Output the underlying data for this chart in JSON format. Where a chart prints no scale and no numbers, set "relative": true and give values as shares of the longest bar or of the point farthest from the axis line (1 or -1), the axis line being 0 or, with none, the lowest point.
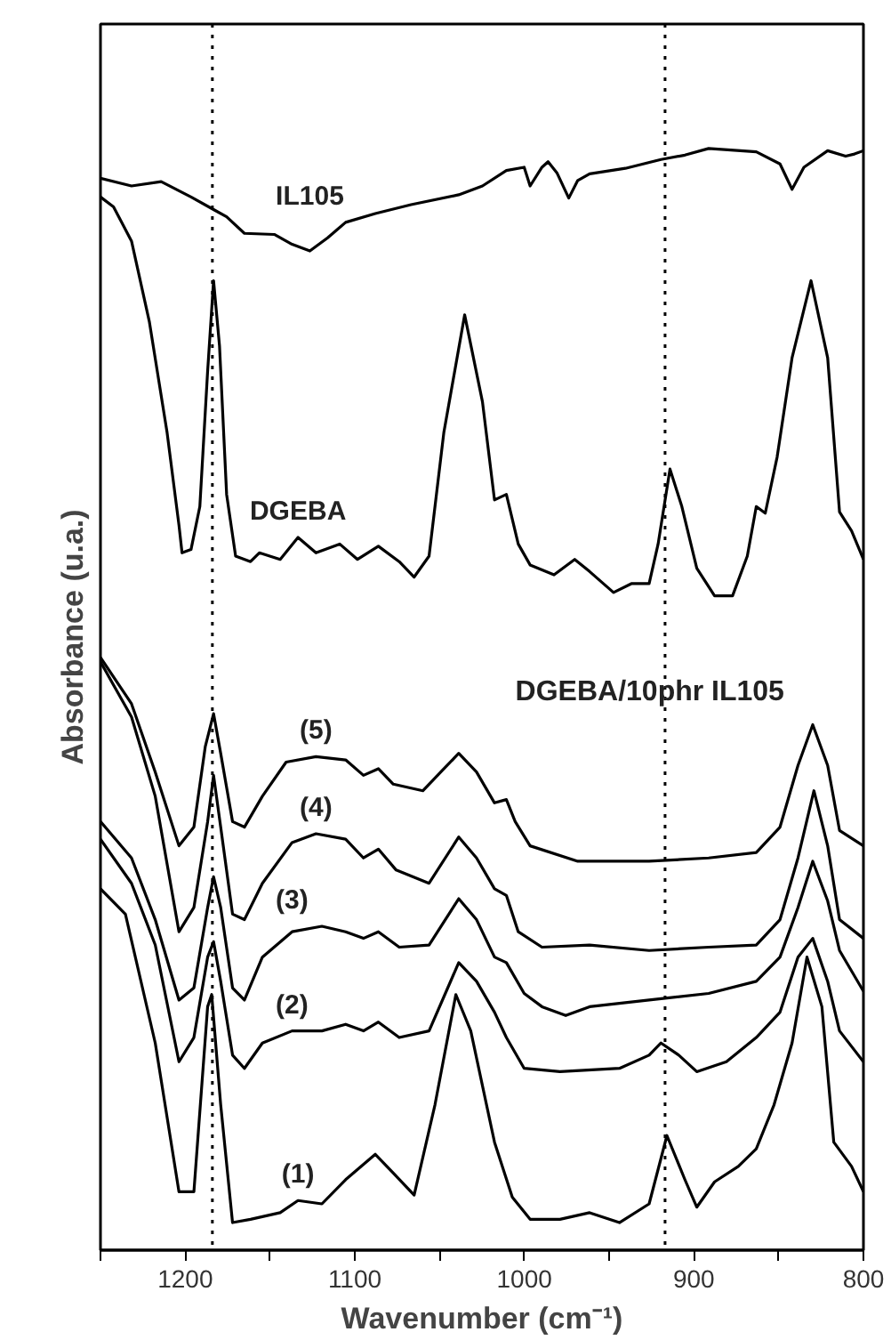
{
  "chart_data": {
    "type": "line",
    "relative": true,
    "xlabel": "Wavenumber (cm⁻¹)",
    "ylabel": "Absorbance (u.a.)",
    "xlim": [
      1250,
      800
    ],
    "xticks": [
      {
        "value": 1250,
        "label": null
      },
      1200,
      {
        "value": 1150,
        "label": null
      },
      1100,
      {
        "value": 1050,
        "label": null
      },
      1000,
      {
        "value": 950,
        "label": null
      },
      900,
      {
        "value": 850,
        "label": null
      },
      800
    ],
    "grid": false,
    "legend": false,
    "marker": "none",
    "line_style": "solid",
    "ref_lines": [
      {
        "axis": "x",
        "value": 1184,
        "color": "#000000",
        "line_style": "dotted"
      },
      {
        "axis": "x",
        "value": 917,
        "color": "#000000",
        "line_style": "dotted"
      }
    ],
    "annotations": [
      "DGEBA/10phr IL105"
    ],
    "series": [
      {
        "name": "IL105",
        "color": "#000000",
        "x": [
          1250,
          1231.7,
          1214.2,
          1196.6,
          1182.6,
          1175.6,
          1165.1,
          1147.5,
          1137.0,
          1126.5,
          1116.0,
          1105.4,
          1087.9,
          1066.8,
          1038.7,
          1024.7,
          1010.6,
          1000.1,
          996.6,
          989.6,
          986.0,
          980.8,
          973.8,
          968.5,
          961.5,
          940.4,
          919.4,
          905.3,
          891.3,
          863.2,
          849.2,
          842.1,
          835.1,
          821.1,
          810.5,
          805.3,
          800.0
        ],
        "values": [
          0.973,
          0.966,
          0.97,
          0.956,
          0.944,
          0.938,
          0.923,
          0.922,
          0.913,
          0.907,
          0.919,
          0.933,
          0.941,
          0.949,
          0.958,
          0.966,
          0.98,
          0.983,
          0.966,
          0.983,
          0.988,
          0.978,
          0.955,
          0.971,
          0.977,
          0.982,
          0.99,
          0.994,
          1.0,
          0.997,
          0.986,
          0.963,
          0.983,
          0.998,
          0.993,
          0.995,
          0.998
        ]
      },
      {
        "name": "DGEBA",
        "color": "#000000",
        "x": [
          1250,
          1242.3,
          1231.7,
          1221.2,
          1210.7,
          1203.7,
          1201.9,
          1196.6,
          1191.4,
          1186.8,
          1183.3,
          1179.8,
          1175.6,
          1170.3,
          1161.5,
          1156.3,
          1144.0,
          1133.5,
          1122.9,
          1108.9,
          1098.4,
          1086.1,
          1073.8,
          1065.0,
          1056.2,
          1047.5,
          1035.2,
          1024.7,
          1017.6,
          1010.6,
          1003.6,
          996.6,
          982.5,
          970.3,
          961.5,
          947.4,
          936.9,
          926.4,
          921.1,
          914.1,
          907.1,
          898.3,
          887.8,
          877.2,
          868.5,
          863.2,
          857.9,
          850.9,
          842.1,
          830.9,
          821.1,
          814.1,
          807.0,
          800.0
        ],
        "values": [
          0.956,
          0.947,
          0.916,
          0.843,
          0.742,
          0.658,
          0.633,
          0.636,
          0.675,
          0.798,
          0.88,
          0.821,
          0.686,
          0.63,
          0.625,
          0.633,
          0.627,
          0.647,
          0.633,
          0.641,
          0.627,
          0.639,
          0.625,
          0.611,
          0.63,
          0.742,
          0.849,
          0.77,
          0.681,
          0.686,
          0.641,
          0.622,
          0.613,
          0.627,
          0.616,
          0.597,
          0.605,
          0.605,
          0.641,
          0.709,
          0.675,
          0.619,
          0.594,
          0.594,
          0.63,
          0.675,
          0.669,
          0.72,
          0.81,
          0.88,
          0.81,
          0.67,
          0.653,
          0.627
        ]
      },
      {
        "name": "(5)",
        "color": "#000000",
        "x": [
          1250,
          1231.7,
          1217.7,
          1203.7,
          1194.9,
          1188.2,
          1183.3,
          1179.1,
          1172.1,
          1165.1,
          1154.5,
          1140.5,
          1122.9,
          1105.4,
          1094.9,
          1086.1,
          1077.3,
          1059.8,
          1049.3,
          1038.7,
          1028.2,
          1017.6,
          1010.6,
          1005.4,
          996.6,
          968.5,
          926.4,
          891.3,
          863.2,
          849.2,
          838.6,
          829.9,
          821.1,
          814.1,
          800.0
        ],
        "values": [
          0.538,
          0.496,
          0.434,
          0.367,
          0.384,
          0.457,
          0.487,
          0.451,
          0.389,
          0.384,
          0.412,
          0.443,
          0.448,
          0.445,
          0.431,
          0.437,
          0.423,
          0.417,
          0.434,
          0.451,
          0.434,
          0.406,
          0.409,
          0.389,
          0.367,
          0.353,
          0.353,
          0.356,
          0.361,
          0.384,
          0.44,
          0.477,
          0.44,
          0.381,
          0.367
        ]
      },
      {
        "name": "(4)",
        "color": "#000000",
        "x": [
          1250,
          1231.7,
          1217.7,
          1203.7,
          1194.9,
          1186.8,
          1183.3,
          1179.1,
          1172.1,
          1165.1,
          1154.5,
          1137.0,
          1122.9,
          1105.4,
          1094.9,
          1086.1,
          1075.6,
          1056.2,
          1038.7,
          1028.2,
          1017.6,
          1010.6,
          1003.6,
          989.6,
          961.5,
          926.4,
          891.3,
          863.2,
          849.2,
          838.6,
          829.2,
          821.1,
          814.1,
          800.0
        ],
        "values": [
          0.534,
          0.484,
          0.412,
          0.289,
          0.311,
          0.389,
          0.431,
          0.384,
          0.305,
          0.3,
          0.333,
          0.37,
          0.378,
          0.373,
          0.356,
          0.364,
          0.345,
          0.333,
          0.375,
          0.356,
          0.328,
          0.322,
          0.289,
          0.275,
          0.277,
          0.272,
          0.275,
          0.277,
          0.3,
          0.356,
          0.417,
          0.367,
          0.3,
          0.283
        ]
      },
      {
        "name": "(3)",
        "color": "#000000",
        "x": [
          1250,
          1231.7,
          1217.7,
          1203.7,
          1194.9,
          1186.8,
          1183.3,
          1179.1,
          1172.1,
          1165.1,
          1154.5,
          1137.0,
          1119.4,
          1105.4,
          1094.9,
          1086.1,
          1073.8,
          1056.2,
          1038.7,
          1028.2,
          1017.6,
          1010.6,
          1000.1,
          989.6,
          975.6,
          961.5,
          926.4,
          891.3,
          863.2,
          849.2,
          838.6,
          829.9,
          821.1,
          814.1,
          800.0
        ],
        "values": [
          0.389,
          0.356,
          0.3,
          0.227,
          0.238,
          0.311,
          0.339,
          0.311,
          0.238,
          0.227,
          0.266,
          0.289,
          0.294,
          0.289,
          0.283,
          0.289,
          0.275,
          0.277,
          0.319,
          0.3,
          0.266,
          0.261,
          0.233,
          0.221,
          0.213,
          0.221,
          0.227,
          0.233,
          0.244,
          0.266,
          0.311,
          0.353,
          0.317,
          0.272,
          0.235
        ]
      },
      {
        "name": "(2)",
        "color": "#000000",
        "x": [
          1250,
          1231.7,
          1217.7,
          1203.7,
          1194.9,
          1186.8,
          1183.3,
          1179.1,
          1172.1,
          1165.1,
          1154.5,
          1137.0,
          1119.4,
          1105.4,
          1094.9,
          1086.1,
          1073.8,
          1056.2,
          1038.7,
          1028.2,
          1017.6,
          1010.6,
          1000.1,
          979.0,
          943.9,
          926.4,
          919.4,
          908.9,
          898.3,
          880.8,
          863.2,
          849.2,
          838.6,
          829.9,
          821.1,
          814.1,
          800.0
        ],
        "values": [
          0.373,
          0.333,
          0.277,
          0.171,
          0.193,
          0.266,
          0.28,
          0.244,
          0.177,
          0.165,
          0.188,
          0.199,
          0.199,
          0.205,
          0.199,
          0.207,
          0.193,
          0.199,
          0.261,
          0.244,
          0.216,
          0.193,
          0.165,
          0.162,
          0.165,
          0.177,
          0.188,
          0.177,
          0.162,
          0.171,
          0.193,
          0.216,
          0.266,
          0.283,
          0.244,
          0.199,
          0.171
        ]
      },
      {
        "name": "(1)",
        "color": "#000000",
        "x": [
          1250,
          1235.3,
          1217.7,
          1203.7,
          1194.9,
          1186.8,
          1184.4,
          1179.1,
          1172.1,
          1161.5,
          1144.0,
          1133.5,
          1119.4,
          1105.4,
          1087.9,
          1077.3,
          1065.0,
          1052.7,
          1040.4,
          1031.6,
          1017.6,
          1007.1,
          996.6,
          979.0,
          961.5,
          943.9,
          926.4,
          915.9,
          905.3,
          898.3,
          887.8,
          873.8,
          863.2,
          852.7,
          842.1,
          833.3,
          824.5,
          817.5,
          807.0,
          800.0
        ],
        "values": [
          0.328,
          0.305,
          0.188,
          0.053,
          0.053,
          0.221,
          0.232,
          0.132,
          0.025,
          0.028,
          0.034,
          0.045,
          0.042,
          0.064,
          0.087,
          0.07,
          0.05,
          0.132,
          0.232,
          0.199,
          0.098,
          0.048,
          0.028,
          0.028,
          0.034,
          0.025,
          0.042,
          0.104,
          0.064,
          0.039,
          0.062,
          0.076,
          0.092,
          0.132,
          0.188,
          0.266,
          0.221,
          0.098,
          0.076,
          0.053
        ]
      }
    ]
  }
}
